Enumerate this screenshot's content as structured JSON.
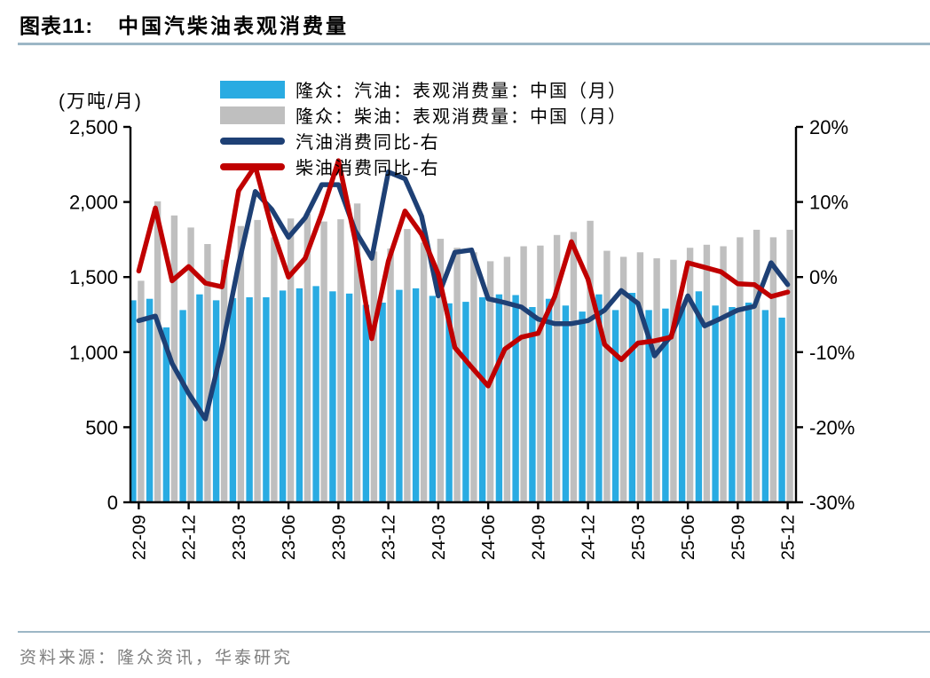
{
  "header": {
    "figure_label": "图表11:",
    "title": "中国汽柴油表观消费量"
  },
  "footer": {
    "source": "资料来源：隆众资讯，华泰研究"
  },
  "colors": {
    "gasoline_bar": "#29ABE2",
    "diesel_bar": "#BFBFBF",
    "gasoline_line": "#1E4075",
    "diesel_line": "#C00000",
    "axis": "#000000",
    "rule": "#9DB7C6",
    "source_text": "#7f7f7f"
  },
  "chart_data": {
    "type": "combo",
    "title": "中国汽柴油表观消费量",
    "legend_position": "top-left-inside",
    "grid": false,
    "left_axis": {
      "unit": "(万吨/月)",
      "min": 0,
      "max": 2500,
      "tick_values": [
        0,
        500,
        1000,
        1500,
        2000,
        2500
      ],
      "tick_labels": [
        "0",
        "500",
        "1,000",
        "1,500",
        "2,000",
        "2,500"
      ]
    },
    "right_axis": {
      "min": -30,
      "max": 20,
      "tick_values": [
        -30,
        -20,
        -10,
        0,
        10,
        20
      ],
      "tick_labels": [
        "-30%",
        "-20%",
        "-10%",
        "0%",
        "10%",
        "20%"
      ]
    },
    "x_axis": {
      "label_every_n_months": 3,
      "shown_labels": [
        "22-09",
        "22-12",
        "23-03",
        "23-06",
        "23-09",
        "23-12",
        "24-03",
        "24-06",
        "24-09",
        "24-12",
        "25-03",
        "25-06",
        "25-09",
        "25-12"
      ]
    },
    "categories": [
      "22-09",
      "22-10",
      "22-11",
      "22-12",
      "23-01",
      "23-02",
      "23-03",
      "23-04",
      "23-05",
      "23-06",
      "23-07",
      "23-08",
      "23-09",
      "23-10",
      "23-11",
      "23-12",
      "24-01",
      "24-02",
      "24-03",
      "24-04",
      "24-05",
      "24-06",
      "24-07",
      "24-08",
      "24-09",
      "24-10",
      "24-11",
      "24-12",
      "25-01",
      "25-02",
      "25-03",
      "25-04",
      "25-05",
      "25-06",
      "25-07",
      "25-08",
      "25-09",
      "25-10",
      "25-11",
      "25-12"
    ],
    "series": [
      {
        "name": "隆众：汽油：表观消费量：中国（月）",
        "type": "bar",
        "axis": "left",
        "color": "#29ABE2",
        "values": [
          1345,
          1355,
          1165,
          1280,
          1385,
          1345,
          1360,
          1365,
          1365,
          1410,
          1425,
          1440,
          1405,
          1390,
          1315,
          1330,
          1415,
          1425,
          1375,
          1325,
          1335,
          1365,
          1385,
          1380,
          1300,
          1355,
          1310,
          1270,
          1385,
          1280,
          1395,
          1280,
          1290,
          1300,
          1405,
          1310,
          1300,
          1330,
          1280,
          1230
        ]
      },
      {
        "name": "隆众：柴油：表观消费量：中国（月）",
        "type": "bar",
        "axis": "left",
        "color": "#BFBFBF",
        "values": [
          1475,
          2005,
          1910,
          1830,
          1720,
          1615,
          1840,
          1880,
          1765,
          1890,
          1920,
          1870,
          1885,
          1990,
          1670,
          1690,
          1820,
          1730,
          1755,
          1695,
          1665,
          1605,
          1635,
          1705,
          1710,
          1780,
          1800,
          1875,
          1675,
          1635,
          1665,
          1625,
          1615,
          1695,
          1715,
          1705,
          1765,
          1815,
          1765,
          1815
        ]
      },
      {
        "name": "汽油消费同比-右",
        "type": "line",
        "axis": "right",
        "color": "#1E4075",
        "values": [
          -5.8,
          -5.2,
          -11.5,
          -15.5,
          -18.9,
          -9.5,
          1.7,
          11.4,
          9.0,
          5.3,
          7.9,
          12.3,
          12.3,
          6.2,
          2.5,
          14.0,
          13.1,
          8.1,
          -2.5,
          3.3,
          3.6,
          -2.9,
          -3.4,
          -4.0,
          -5.6,
          -6.2,
          -6.2,
          -5.8,
          -4.4,
          -1.8,
          -3.5,
          -10.5,
          -7.8,
          -2.5,
          -6.5,
          -5.5,
          -4.4,
          -3.9,
          1.9,
          -1.0
        ]
      },
      {
        "name": "柴油消费同比-右",
        "type": "line",
        "axis": "right",
        "color": "#C00000",
        "values": [
          0.8,
          9.2,
          -0.5,
          1.4,
          -0.8,
          -1.3,
          11.5,
          14.8,
          6.5,
          0.0,
          2.5,
          8.5,
          15.5,
          5.0,
          -8.2,
          2.1,
          8.8,
          5.7,
          0.4,
          -9.4,
          -12.0,
          -14.5,
          -9.6,
          -8.0,
          -7.5,
          -2.6,
          4.7,
          -0.3,
          -9.0,
          -11.0,
          -8.8,
          -8.5,
          -8.0,
          1.9,
          1.3,
          0.7,
          -0.9,
          -1.0,
          -2.6,
          -2.0
        ]
      }
    ]
  }
}
